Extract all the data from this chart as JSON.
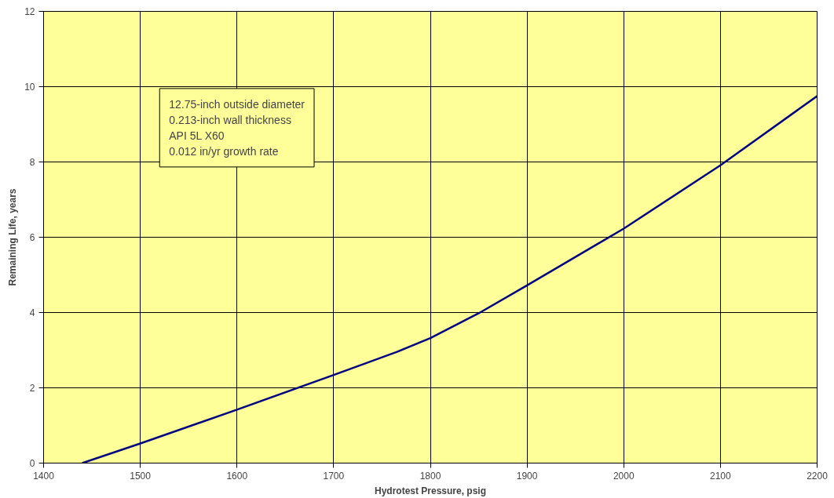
{
  "chart_data": {
    "type": "line",
    "xlabel": "Hydrotest Pressure, psig",
    "ylabel": "Remaining Life, years",
    "x": [
      1440,
      1500,
      1600,
      1700,
      1765,
      1800,
      1850,
      1900,
      2000,
      2100,
      2200
    ],
    "series": [
      {
        "color": "#000080",
        "values": [
          0,
          0.52,
          1.42,
          2.34,
          2.95,
          3.32,
          3.98,
          4.72,
          6.23,
          7.91,
          9.75
        ]
      }
    ],
    "xlim": [
      1400,
      2200
    ],
    "xticks": [
      1400,
      1500,
      1600,
      1700,
      1800,
      1900,
      2000,
      2100,
      2200
    ],
    "ylim": [
      0,
      12
    ],
    "yticks": [
      0,
      2,
      4,
      6,
      8,
      10,
      12
    ],
    "grid": true,
    "marker": "none",
    "line_style": "solid",
    "annotations": [
      "12.75-inch outside diameter\n0.213-inch wall thickness\nAPI 5L X60\n0.012 in/yr growth rate"
    ]
  }
}
